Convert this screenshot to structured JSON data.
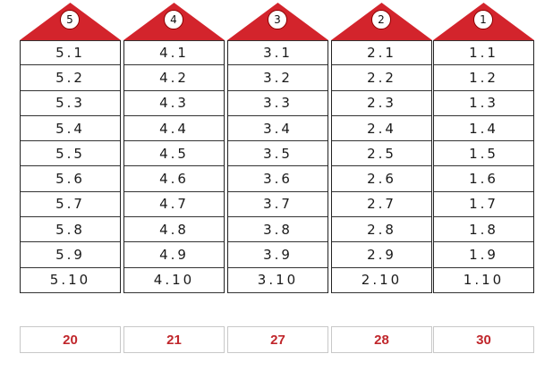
{
  "colors": {
    "roof": "#d3242c",
    "total_text": "#c0262b"
  },
  "houses": [
    {
      "number": "5",
      "rows": [
        "5.1",
        "5.2",
        "5.3",
        "5.4",
        "5.5",
        "5.6",
        "5.7",
        "5.8",
        "5.9",
        "5.10"
      ],
      "total": "20"
    },
    {
      "number": "4",
      "rows": [
        "4.1",
        "4.2",
        "4.3",
        "4.4",
        "4.5",
        "4.6",
        "4.7",
        "4.8",
        "4.9",
        "4.10"
      ],
      "total": "21"
    },
    {
      "number": "3",
      "rows": [
        "3.1",
        "3.2",
        "3.3",
        "3.4",
        "3.5",
        "3.6",
        "3.7",
        "3.8",
        "3.9",
        "3.10"
      ],
      "total": "27"
    },
    {
      "number": "2",
      "rows": [
        "2.1",
        "2.2",
        "2.3",
        "2.4",
        "2.5",
        "2.6",
        "2.7",
        "2.8",
        "2.9",
        "2.10"
      ],
      "total": "28"
    },
    {
      "number": "1",
      "rows": [
        "1.1",
        "1.2",
        "1.3",
        "1.4",
        "1.5",
        "1.6",
        "1.7",
        "1.8",
        "1.9",
        "1.10"
      ],
      "total": "30"
    }
  ]
}
